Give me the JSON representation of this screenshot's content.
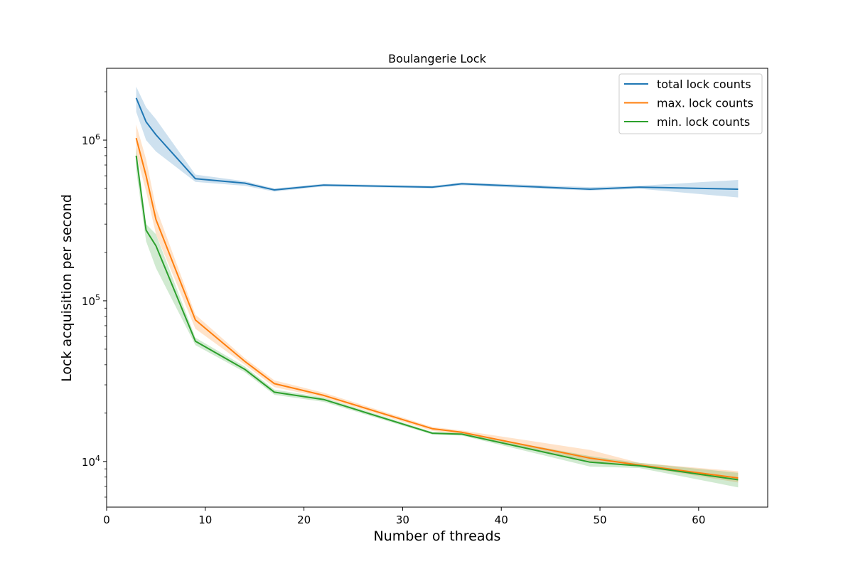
{
  "chart_data": {
    "type": "line",
    "title": "Boulangerie Lock",
    "xlabel": "Number of threads",
    "ylabel": "Lock acquisition per second",
    "xlim": [
      0,
      67
    ],
    "ylim": [
      5200,
      2800000
    ],
    "yscale": "log",
    "grid": false,
    "legend_position": "top-right",
    "x_ticks": [
      0,
      10,
      20,
      30,
      40,
      50,
      60
    ],
    "x_tick_labels": [
      "0",
      "10",
      "20",
      "30",
      "40",
      "50",
      "60"
    ],
    "y_ticks": [
      10000,
      100000,
      1000000
    ],
    "y_tick_labels": [
      {
        "base": "10",
        "exp": "4"
      },
      {
        "base": "10",
        "exp": "5"
      },
      {
        "base": "10",
        "exp": "6"
      }
    ],
    "x": [
      3,
      4,
      5,
      9,
      14,
      17,
      22,
      33,
      36,
      49,
      54,
      64
    ],
    "series": [
      {
        "name": "total lock counts",
        "color": "#1f77b4",
        "values": [
          1830000,
          1300000,
          1080000,
          575000,
          540000,
          490000,
          525000,
          510000,
          535000,
          495000,
          510000,
          495000
        ],
        "lower": [
          1500000,
          1000000,
          850000,
          550000,
          520000,
          478000,
          515000,
          500000,
          523000,
          485000,
          498000,
          440000
        ],
        "upper": [
          2150000,
          1600000,
          1350000,
          610000,
          555000,
          500000,
          535000,
          520000,
          545000,
          510000,
          520000,
          565000
        ]
      },
      {
        "name": "max. lock counts",
        "color": "#ff7f0e",
        "values": [
          1030000,
          600000,
          320000,
          76000,
          42000,
          30500,
          25800,
          16000,
          15200,
          10500,
          9500,
          7900
        ],
        "lower": [
          820000,
          480000,
          260000,
          67000,
          40000,
          29000,
          25000,
          15500,
          14800,
          10000,
          9300,
          7400
        ],
        "upper": [
          1250000,
          760000,
          380000,
          82000,
          44000,
          32000,
          26800,
          16400,
          15600,
          11800,
          9800,
          8700
        ]
      },
      {
        "name": "min. lock counts",
        "color": "#2ca02c",
        "values": [
          800000,
          275000,
          220000,
          56000,
          37500,
          27000,
          24300,
          15000,
          14800,
          9900,
          9400,
          7700
        ],
        "lower": [
          650000,
          235000,
          160000,
          53000,
          36000,
          26000,
          23500,
          14700,
          14500,
          9300,
          9100,
          6900
        ],
        "upper": [
          900000,
          300000,
          260000,
          59000,
          39000,
          28000,
          25000,
          15300,
          15100,
          10800,
          9800,
          8500
        ]
      }
    ]
  }
}
